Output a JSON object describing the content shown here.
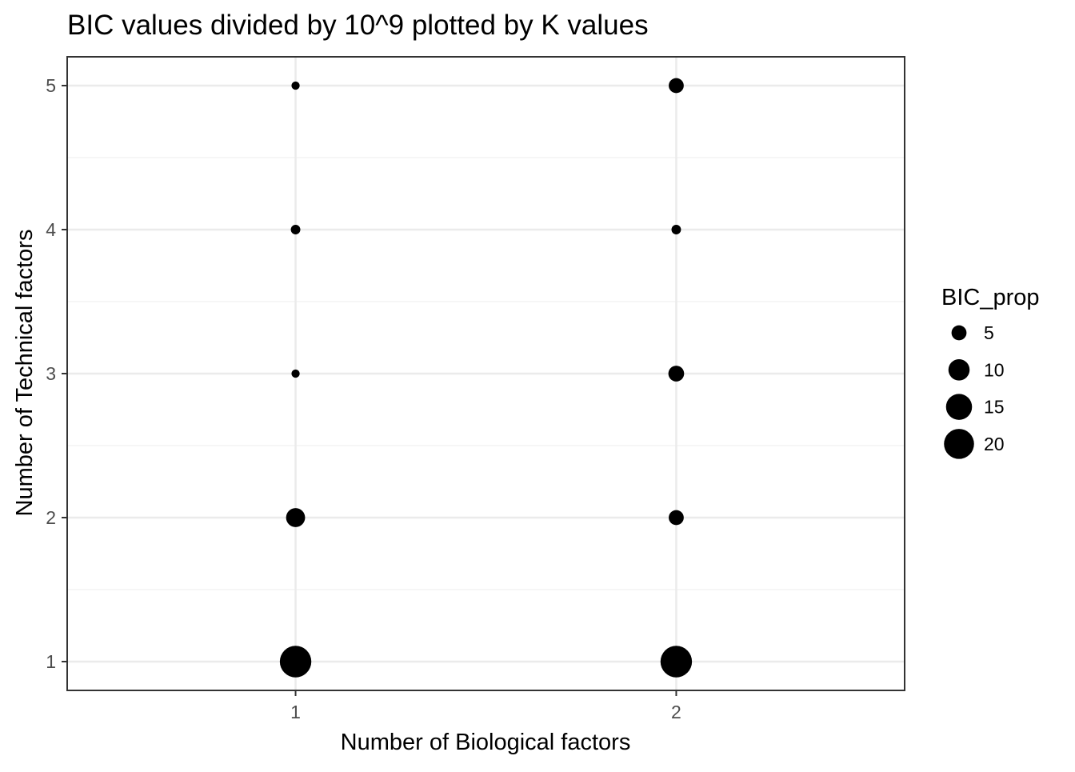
{
  "chart_data": {
    "type": "scatter",
    "title": "BIC values divided by 10^9 plotted by K values",
    "xlabel": "Number of Biological factors",
    "ylabel": "Number of Technical factors",
    "x_ticks": [
      "1",
      "2"
    ],
    "y_ticks": [
      "1",
      "2",
      "3",
      "4",
      "5"
    ],
    "xlim": [
      0.4,
      2.6
    ],
    "ylim": [
      0.8,
      5.2
    ],
    "grid": true,
    "size_variable": "BIC_prop",
    "points": [
      {
        "x": 1,
        "y": 1,
        "size": 22
      },
      {
        "x": 1,
        "y": 2,
        "size": 8
      },
      {
        "x": 1,
        "y": 3,
        "size": 1.5
      },
      {
        "x": 1,
        "y": 4,
        "size": 2
      },
      {
        "x": 1,
        "y": 5,
        "size": 1.5
      },
      {
        "x": 2,
        "y": 1,
        "size": 22
      },
      {
        "x": 2,
        "y": 2,
        "size": 5
      },
      {
        "x": 2,
        "y": 3,
        "size": 5.5
      },
      {
        "x": 2,
        "y": 4,
        "size": 2
      },
      {
        "x": 2,
        "y": 5,
        "size": 5
      }
    ],
    "legend": {
      "title": "BIC_prop",
      "position": "right",
      "entries": [
        {
          "label": "5",
          "value": 5
        },
        {
          "label": "10",
          "value": 10
        },
        {
          "label": "15",
          "value": 15
        },
        {
          "label": "20",
          "value": 20
        }
      ]
    }
  }
}
